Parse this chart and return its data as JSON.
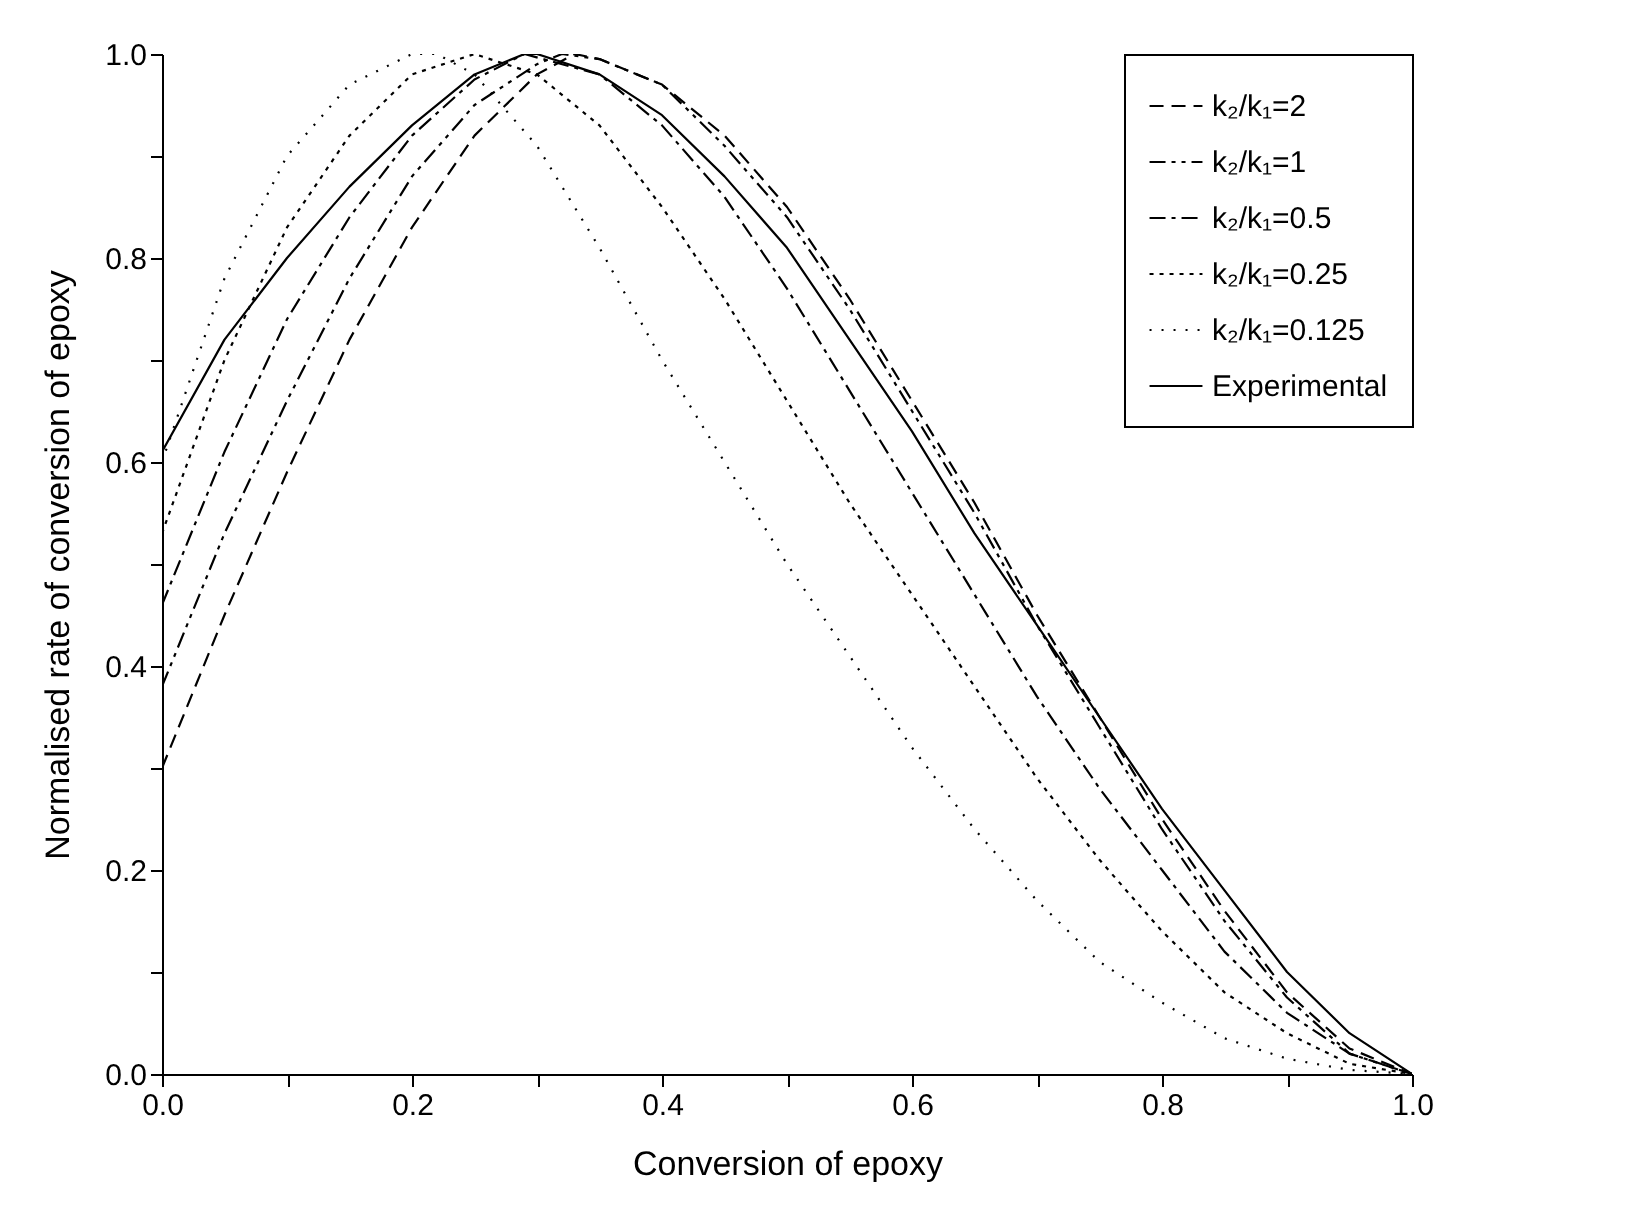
{
  "chart_data": {
    "type": "line",
    "xlabel": "Conversion of epoxy",
    "ylabel": "Normalised rate of conversion of epoxy",
    "xlim": [
      0,
      1
    ],
    "ylim": [
      0,
      1
    ],
    "xticks": [
      {
        "value": 0,
        "label": "0.0"
      },
      {
        "value": 0.1,
        "label": null
      },
      {
        "value": 0.2,
        "label": "0.2"
      },
      {
        "value": 0.3,
        "label": null
      },
      {
        "value": 0.4,
        "label": "0.4"
      },
      {
        "value": 0.5,
        "label": null
      },
      {
        "value": 0.6,
        "label": "0.6"
      },
      {
        "value": 0.7,
        "label": null
      },
      {
        "value": 0.8,
        "label": "0.8"
      },
      {
        "value": 0.9,
        "label": null
      },
      {
        "value": 1,
        "label": "1.0"
      }
    ],
    "yticks": [
      {
        "value": 0,
        "label": "0.0"
      },
      {
        "value": 0.1,
        "label": null
      },
      {
        "value": 0.2,
        "label": "0.2"
      },
      {
        "value": 0.3,
        "label": null
      },
      {
        "value": 0.4,
        "label": "0.4"
      },
      {
        "value": 0.5,
        "label": null
      },
      {
        "value": 0.6,
        "label": "0.6"
      },
      {
        "value": 0.7,
        "label": null
      },
      {
        "value": 0.8,
        "label": "0.8"
      },
      {
        "value": 0.9,
        "label": null
      },
      {
        "value": 1,
        "label": "1.0"
      }
    ],
    "grid": false,
    "legend": "top right",
    "marker": "none",
    "series": [
      {
        "name": "k₂/k₁=2",
        "color": "#000000",
        "line_style": "dashed",
        "x": [
          0,
          0.05,
          0.1,
          0.15,
          0.2,
          0.25,
          0.3,
          0.33,
          0.35,
          0.4,
          0.45,
          0.5,
          0.55,
          0.6,
          0.65,
          0.7,
          0.75,
          0.8,
          0.85,
          0.9,
          0.95,
          1
        ],
        "values": [
          0.3,
          0.45,
          0.59,
          0.72,
          0.83,
          0.92,
          0.98,
          1.0,
          0.995,
          0.97,
          0.92,
          0.85,
          0.76,
          0.66,
          0.56,
          0.45,
          0.35,
          0.25,
          0.16,
          0.08,
          0.025,
          0
        ]
      },
      {
        "name": "k₂/k₁=1",
        "color": "#000000",
        "line_style": "dashed",
        "x": [
          0,
          0.05,
          0.1,
          0.15,
          0.2,
          0.25,
          0.3,
          0.32,
          0.35,
          0.4,
          0.45,
          0.5,
          0.55,
          0.6,
          0.65,
          0.7,
          0.75,
          0.8,
          0.85,
          0.9,
          0.95,
          1
        ],
        "values": [
          0.38,
          0.53,
          0.66,
          0.78,
          0.88,
          0.95,
          0.99,
          1.0,
          0.995,
          0.97,
          0.91,
          0.84,
          0.75,
          0.65,
          0.55,
          0.44,
          0.34,
          0.24,
          0.15,
          0.075,
          0.02,
          0
        ]
      },
      {
        "name": "k₂/k₁=0.5",
        "color": "#000000",
        "line_style": "dashed",
        "x": [
          0,
          0.05,
          0.1,
          0.15,
          0.2,
          0.25,
          0.29,
          0.35,
          0.4,
          0.45,
          0.5,
          0.55,
          0.6,
          0.65,
          0.7,
          0.75,
          0.8,
          0.85,
          0.9,
          0.95,
          1
        ],
        "values": [
          0.46,
          0.61,
          0.74,
          0.84,
          0.92,
          0.975,
          1.0,
          0.98,
          0.93,
          0.86,
          0.77,
          0.67,
          0.57,
          0.47,
          0.37,
          0.28,
          0.2,
          0.12,
          0.06,
          0.02,
          0
        ]
      },
      {
        "name": "k₂/k₁=0.25",
        "color": "#000000",
        "line_style": "dotted",
        "x": [
          0,
          0.05,
          0.1,
          0.15,
          0.2,
          0.25,
          0.3,
          0.35,
          0.4,
          0.45,
          0.5,
          0.55,
          0.6,
          0.65,
          0.7,
          0.75,
          0.8,
          0.85,
          0.9,
          0.95,
          1
        ],
        "values": [
          0.53,
          0.7,
          0.83,
          0.92,
          0.98,
          1.0,
          0.98,
          0.93,
          0.85,
          0.76,
          0.66,
          0.56,
          0.47,
          0.38,
          0.29,
          0.21,
          0.14,
          0.08,
          0.04,
          0.01,
          0
        ]
      },
      {
        "name": "k₂/k₁=0.125",
        "color": "#000000",
        "line_style": "dotted",
        "x": [
          0,
          0.05,
          0.1,
          0.15,
          0.2,
          0.22,
          0.25,
          0.3,
          0.35,
          0.4,
          0.45,
          0.5,
          0.55,
          0.6,
          0.65,
          0.7,
          0.75,
          0.8,
          0.85,
          0.9,
          0.95,
          1
        ],
        "values": [
          0.6,
          0.78,
          0.9,
          0.97,
          1.0,
          1.0,
          0.98,
          0.91,
          0.81,
          0.7,
          0.6,
          0.5,
          0.41,
          0.32,
          0.24,
          0.17,
          0.11,
          0.07,
          0.035,
          0.015,
          0.004,
          0
        ]
      },
      {
        "name": "Experimental",
        "color": "#000000",
        "line_style": "solid",
        "x": [
          0,
          0.05,
          0.1,
          0.15,
          0.2,
          0.25,
          0.29,
          0.3,
          0.35,
          0.4,
          0.45,
          0.5,
          0.55,
          0.6,
          0.65,
          0.7,
          0.75,
          0.8,
          0.85,
          0.9,
          0.95,
          1
        ],
        "values": [
          0.61,
          0.72,
          0.8,
          0.87,
          0.93,
          0.98,
          1.0,
          1.0,
          0.98,
          0.94,
          0.88,
          0.81,
          0.72,
          0.63,
          0.53,
          0.44,
          0.35,
          0.26,
          0.18,
          0.1,
          0.04,
          0
        ]
      }
    ]
  }
}
